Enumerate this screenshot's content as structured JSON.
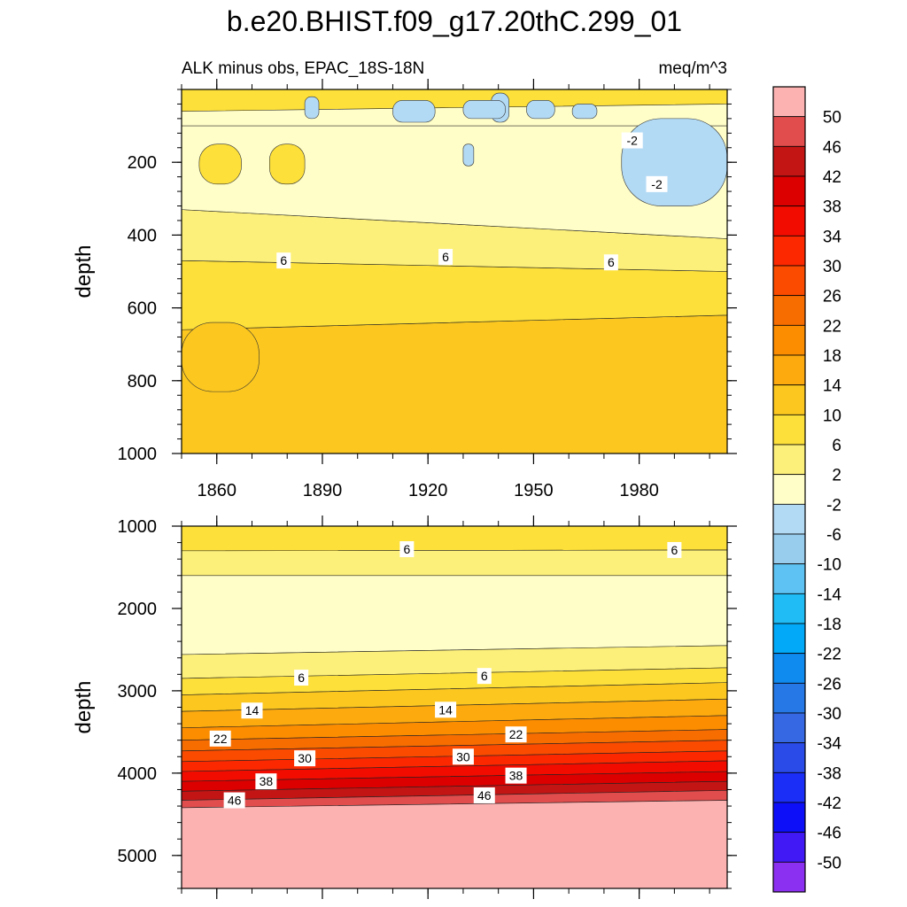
{
  "chart_data": {
    "type": "heatmap",
    "title": "b.e20.BHIST.f09_g17.20thC.299_01",
    "subtitle_left": "ALK minus obs, EPAC_18S-18N",
    "subtitle_right": "meq/m^3",
    "xlabel": "",
    "xlim": [
      1850,
      2005
    ],
    "xticks": [
      1860,
      1890,
      1920,
      1950,
      1980
    ],
    "panels": [
      {
        "ylabel": "depth",
        "ylim": [
          0,
          1000
        ],
        "yticks": [
          200,
          400,
          600,
          800,
          1000
        ],
        "show_x_tick_labels": true,
        "bands": [
          {
            "color": "#fcc81f",
            "top": [
              660,
              620
            ],
            "bottom": [
              1000,
              1000
            ]
          },
          {
            "color": "#fde03a",
            "top": [
              470,
              500
            ],
            "bottom": [
              660,
              620
            ]
          },
          {
            "color": "#fdf07a",
            "top": [
              330,
              410
            ],
            "bottom": [
              470,
              500
            ]
          },
          {
            "color": "#fffec8",
            "top": [
              100,
              100
            ],
            "bottom": [
              330,
              410
            ]
          },
          {
            "color": "#fde03a",
            "top": [
              0,
              0
            ],
            "bottom": [
              60,
              40
            ]
          }
        ],
        "patches": [
          {
            "color": "#b3daf5",
            "x": 1975,
            "y": 80,
            "w": 30,
            "h": 240
          },
          {
            "color": "#b3daf5",
            "x": 1938,
            "y": 10,
            "w": 5,
            "h": 80
          },
          {
            "color": "#b3daf5",
            "x": 1910,
            "y": 30,
            "w": 12,
            "h": 60
          },
          {
            "color": "#b3daf5",
            "x": 1930,
            "y": 30,
            "w": 12,
            "h": 50
          },
          {
            "color": "#b3daf5",
            "x": 1885,
            "y": 20,
            "w": 4,
            "h": 60
          },
          {
            "color": "#b3daf5",
            "x": 1948,
            "y": 30,
            "w": 8,
            "h": 50
          },
          {
            "color": "#b3daf5",
            "x": 1961,
            "y": 40,
            "w": 7,
            "h": 40
          },
          {
            "color": "#b3daf5",
            "x": 1930,
            "y": 150,
            "w": 3,
            "h": 60
          },
          {
            "color": "#fcc81f",
            "x": 1850,
            "y": 640,
            "w": 22,
            "h": 190
          },
          {
            "color": "#fde03a",
            "x": 1855,
            "y": 150,
            "w": 12,
            "h": 110
          },
          {
            "color": "#fde03a",
            "x": 1875,
            "y": 150,
            "w": 10,
            "h": 110
          }
        ],
        "contour_labels": [
          {
            "text": "-2",
            "x": 1978,
            "y": 140
          },
          {
            "text": "-2",
            "x": 1985,
            "y": 260
          },
          {
            "text": "6",
            "x": 1879,
            "y": 470
          },
          {
            "text": "6",
            "x": 1925,
            "y": 460
          },
          {
            "text": "6",
            "x": 1972,
            "y": 475
          }
        ]
      },
      {
        "ylabel": "depth",
        "ylim": [
          1000,
          5400
        ],
        "yticks": [
          1000,
          2000,
          3000,
          4000,
          5000
        ],
        "show_x_tick_labels": false,
        "bands": [
          {
            "color": "#fde03a",
            "top": [
              1000,
              1000
            ],
            "bottom": [
              1300,
              1290
            ]
          },
          {
            "color": "#fdf07a",
            "top": [
              1300,
              1290
            ],
            "bottom": [
              1600,
              1600
            ]
          },
          {
            "color": "#fffec8",
            "top": [
              1600,
              1600
            ],
            "bottom": [
              2560,
              2450
            ]
          },
          {
            "color": "#fdf07a",
            "top": [
              2560,
              2450
            ],
            "bottom": [
              2850,
              2720
            ]
          },
          {
            "color": "#fde03a",
            "top": [
              2850,
              2720
            ],
            "bottom": [
              3050,
              2900
            ]
          },
          {
            "color": "#fcc81f",
            "top": [
              3050,
              2900
            ],
            "bottom": [
              3250,
              3100
            ]
          },
          {
            "color": "#fdaa0e",
            "top": [
              3250,
              3100
            ],
            "bottom": [
              3450,
              3300
            ]
          },
          {
            "color": "#fd8d00",
            "top": [
              3450,
              3300
            ],
            "bottom": [
              3600,
              3470
            ]
          },
          {
            "color": "#f86d00",
            "top": [
              3600,
              3470
            ],
            "bottom": [
              3730,
              3600
            ]
          },
          {
            "color": "#fa4b00",
            "top": [
              3730,
              3600
            ],
            "bottom": [
              3860,
              3730
            ]
          },
          {
            "color": "#fc2800",
            "top": [
              3860,
              3730
            ],
            "bottom": [
              3980,
              3850
            ]
          },
          {
            "color": "#f20c00",
            "top": [
              3980,
              3850
            ],
            "bottom": [
              4100,
              3980
            ]
          },
          {
            "color": "#dc0000",
            "top": [
              4100,
              3980
            ],
            "bottom": [
              4220,
              4100
            ]
          },
          {
            "color": "#c41515",
            "top": [
              4220,
              4100
            ],
            "bottom": [
              4330,
              4210
            ]
          },
          {
            "color": "#e14d4d",
            "top": [
              4330,
              4210
            ],
            "bottom": [
              4420,
              4330
            ]
          },
          {
            "color": "#fdb2b2",
            "top": [
              4420,
              4330
            ],
            "bottom": [
              5400,
              5400
            ]
          }
        ],
        "patches": [],
        "contour_labels": [
          {
            "text": "6",
            "x": 1914,
            "y": 1280
          },
          {
            "text": "6",
            "x": 1990,
            "y": 1290
          },
          {
            "text": "6",
            "x": 1884,
            "y": 2840
          },
          {
            "text": "6",
            "x": 1936,
            "y": 2820
          },
          {
            "text": "14",
            "x": 1870,
            "y": 3240
          },
          {
            "text": "14",
            "x": 1925,
            "y": 3230
          },
          {
            "text": "22",
            "x": 1861,
            "y": 3580
          },
          {
            "text": "22",
            "x": 1945,
            "y": 3530
          },
          {
            "text": "30",
            "x": 1885,
            "y": 3820
          },
          {
            "text": "30",
            "x": 1930,
            "y": 3800
          },
          {
            "text": "38",
            "x": 1874,
            "y": 4100
          },
          {
            "text": "38",
            "x": 1945,
            "y": 4030
          },
          {
            "text": "46",
            "x": 1865,
            "y": 4330
          },
          {
            "text": "46",
            "x": 1936,
            "y": 4270
          }
        ]
      }
    ],
    "colorbar": {
      "labels": [
        "50",
        "46",
        "42",
        "38",
        "34",
        "30",
        "26",
        "22",
        "18",
        "14",
        "10",
        "6",
        "2",
        "-2",
        "-6",
        "-10",
        "-14",
        "-18",
        "-22",
        "-26",
        "-30",
        "-34",
        "-38",
        "-42",
        "-46",
        "-50"
      ],
      "colors": [
        "#fdb2b2",
        "#e14d4d",
        "#c41515",
        "#dc0000",
        "#f20c00",
        "#fc2800",
        "#fa4b00",
        "#f86d00",
        "#fd8d00",
        "#fdaa0e",
        "#fcc81f",
        "#fde03a",
        "#fdf07a",
        "#fffec8",
        "#b3daf5",
        "#98cdee",
        "#5ec3f2",
        "#1fbcf5",
        "#01a9f8",
        "#0f8aef",
        "#2578e6",
        "#3768e4",
        "#2a4be8",
        "#1b2ef8",
        "#0d0ff8",
        "#4119f5",
        "#8b2ff0"
      ]
    }
  }
}
